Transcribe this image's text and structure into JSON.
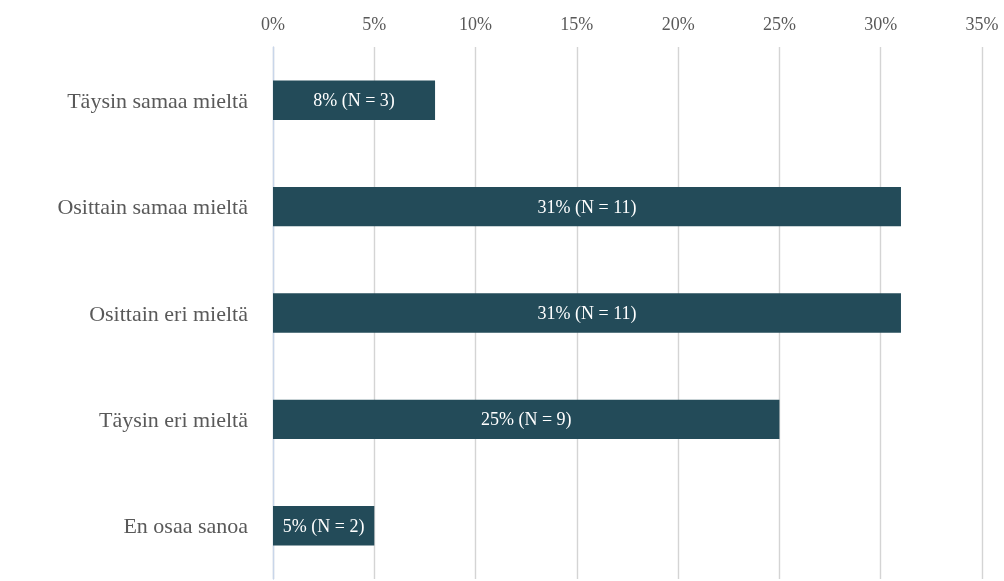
{
  "chart_data": {
    "type": "bar",
    "orientation": "horizontal",
    "categories": [
      "Täysin samaa mieltä",
      "Osittain samaa mieltä",
      "Osittain eri mieltä",
      "Täysin eri mieltä",
      "En osaa sanoa"
    ],
    "values": [
      8,
      31,
      31,
      25,
      5
    ],
    "color": "#234b59",
    "value_labels": [
      "8% (N = 3)",
      "31% (N = 11)",
      "31% (N = 11)",
      "25% (N = 9)",
      "5% (N = 2)"
    ],
    "xlim": [
      0,
      35
    ],
    "xticks": [
      {
        "value": 0,
        "label": "0%"
      },
      {
        "value": 5,
        "label": "5%"
      },
      {
        "value": 10,
        "label": "10%"
      },
      {
        "value": 15,
        "label": "15%"
      },
      {
        "value": 20,
        "label": "20%"
      },
      {
        "value": 25,
        "label": "25%"
      },
      {
        "value": 30,
        "label": "30%"
      },
      {
        "value": 35,
        "label": "35%"
      }
    ],
    "grid": "x"
  }
}
